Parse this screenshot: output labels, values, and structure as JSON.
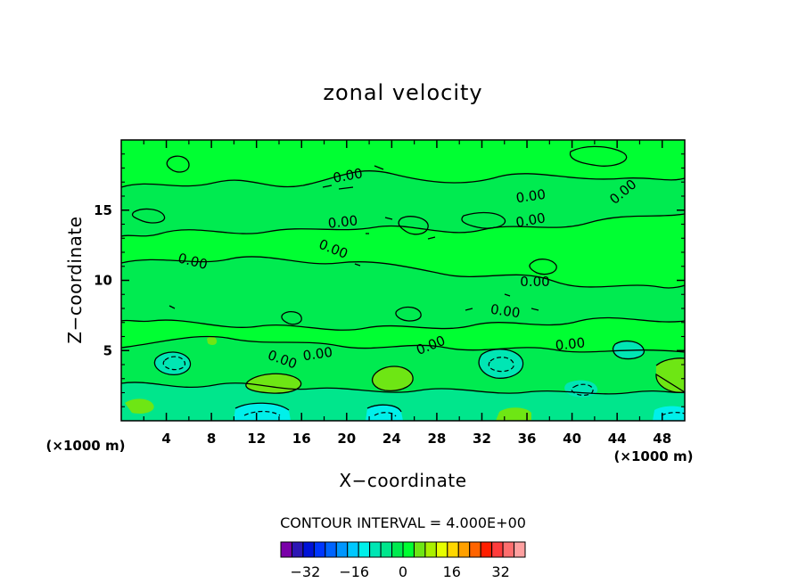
{
  "chart_data": {
    "type": "contour",
    "title": "zonal velocity",
    "xlabel": "X−coordinate",
    "ylabel": "Z−coordinate",
    "x_unit": "(×1000 m)",
    "y_unit": "(×1000 m)",
    "xlim": [
      0,
      50
    ],
    "ylim": [
      0,
      20
    ],
    "x_ticks": [
      "4",
      "8",
      "12",
      "16",
      "20",
      "24",
      "28",
      "32",
      "36",
      "40",
      "44",
      "48"
    ],
    "y_ticks": [
      "5",
      "10",
      "15"
    ],
    "contour_interval_text": "CONTOUR INTERVAL = 4.000E+00",
    "contour_labels": [
      "0.00",
      "0.00",
      "0.00",
      "0.00",
      "0.00",
      "0.00",
      "0.00",
      "0.00",
      "0.00",
      "0.00",
      "0.00",
      "0.00",
      "0.00"
    ],
    "colorbar_ticks": [
      "−32",
      "−16",
      "0",
      "16",
      "32"
    ],
    "colorbar_range": [
      -40,
      40
    ],
    "colorbar_colors": [
      "#7a00a8",
      "#2d16b4",
      "#0012d8",
      "#0036ff",
      "#0064ff",
      "#0096ff",
      "#00c8ff",
      "#00f0ea",
      "#00e6b4",
      "#00e68c",
      "#00eb50",
      "#00ff32",
      "#6ee614",
      "#aaf000",
      "#e6ff00",
      "#ffd700",
      "#ffa000",
      "#ff6400",
      "#ff1e00",
      "#ff3c3c",
      "#ff6e6e",
      "#ffa0a0"
    ]
  }
}
